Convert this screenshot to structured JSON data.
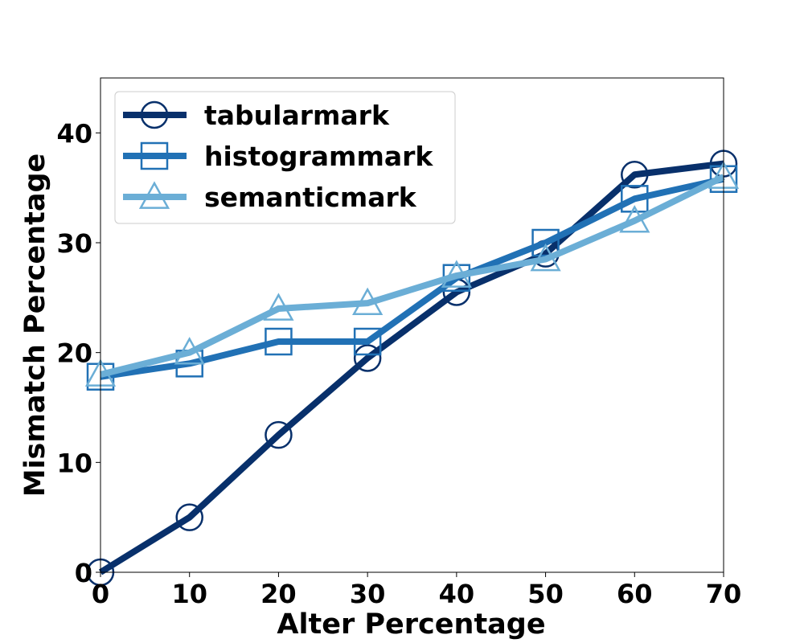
{
  "chart_data": {
    "type": "line",
    "title": "",
    "xlabel": "Alter Percentage",
    "ylabel": "Mismatch Percentage",
    "xlim": [
      0,
      70
    ],
    "ylim": [
      0,
      45
    ],
    "xticks": [
      0,
      10,
      20,
      30,
      40,
      50,
      60,
      70
    ],
    "yticks": [
      0,
      10,
      20,
      30,
      40
    ],
    "grid": false,
    "legend_position": "top-left",
    "x": [
      0,
      10,
      20,
      30,
      40,
      50,
      60,
      70
    ],
    "series": [
      {
        "name": "tabularmark",
        "marker": "circle",
        "color": "#08306b",
        "values": [
          0,
          5,
          12.5,
          19.5,
          25.5,
          29,
          36.2,
          37.2
        ]
      },
      {
        "name": "histogrammark",
        "marker": "square",
        "color": "#2171b5",
        "values": [
          17.8,
          19,
          21,
          21,
          26.8,
          30,
          34,
          35.8
        ]
      },
      {
        "name": "semanticmark",
        "marker": "triangle",
        "color": "#6baed6",
        "values": [
          18,
          20,
          24,
          24.5,
          27,
          28.5,
          32,
          36
        ]
      }
    ]
  }
}
